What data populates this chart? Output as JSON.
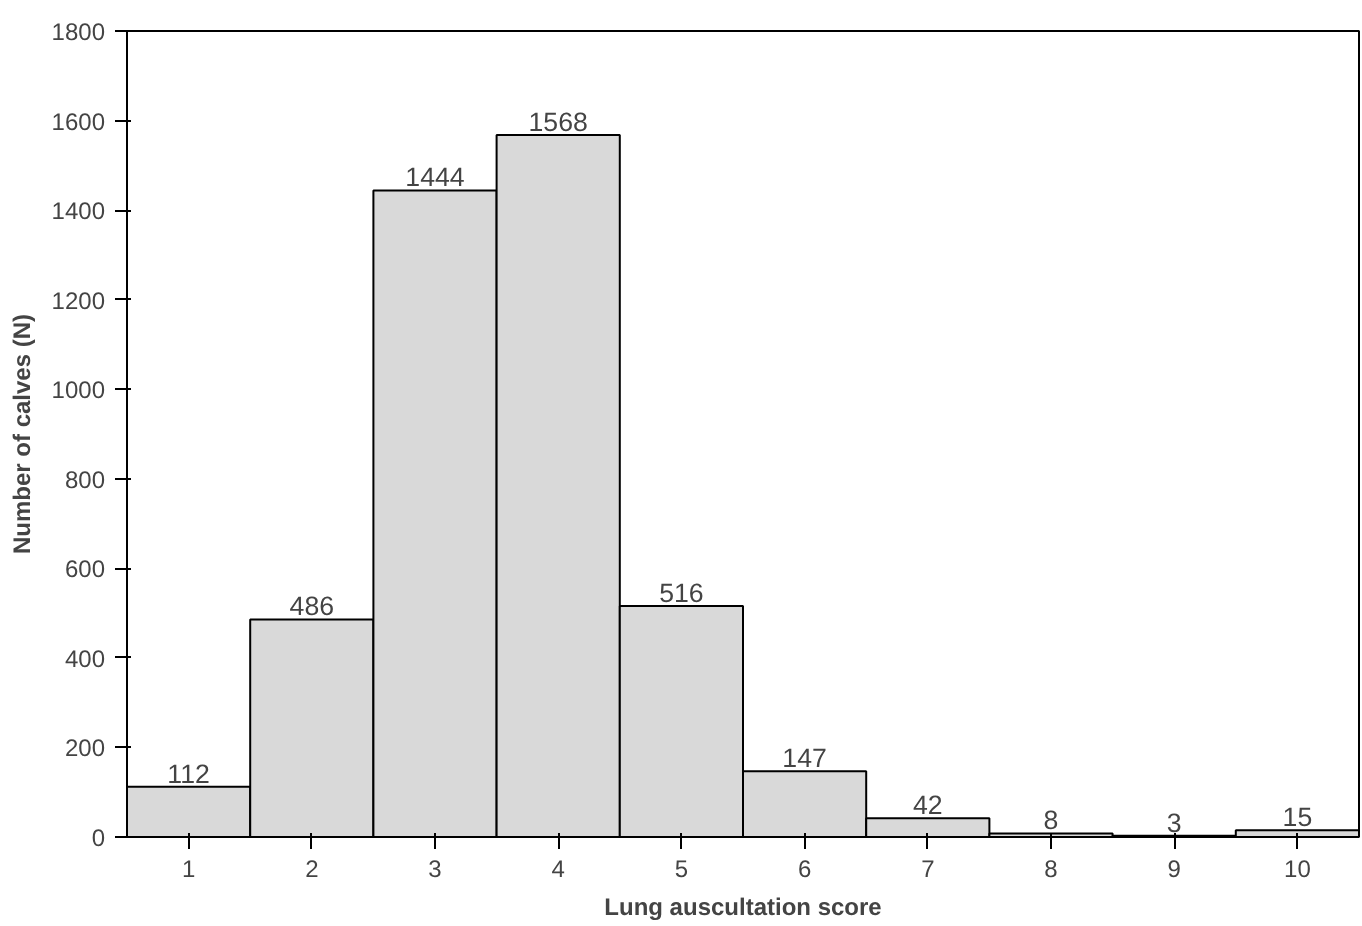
{
  "chart_data": {
    "type": "bar",
    "xlabel": "Lung auscultation score",
    "ylabel": "Number of calves (N)",
    "categories": [
      "1",
      "2",
      "3",
      "4",
      "5",
      "6",
      "7",
      "8",
      "9",
      "10"
    ],
    "values": [
      112,
      486,
      1444,
      1568,
      516,
      147,
      42,
      8,
      3,
      15
    ],
    "color": "#d9d9d9",
    "ylim": [
      0,
      1800
    ],
    "yticks": [
      0,
      200,
      400,
      600,
      800,
      1000,
      1200,
      1400,
      1600,
      1800
    ],
    "data_labels": true,
    "grid": false
  }
}
